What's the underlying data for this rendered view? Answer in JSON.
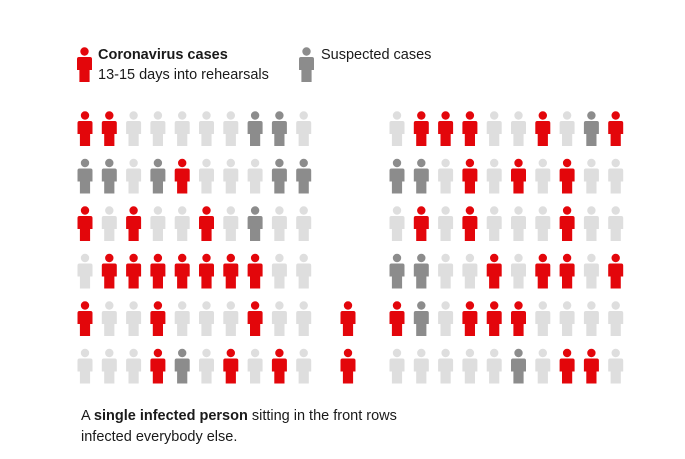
{
  "legend": {
    "confirmed": {
      "title": "Coronavirus cases",
      "subtitle": "13-15 days into rehearsals",
      "color": "#e3060b",
      "icon": "person-icon"
    },
    "suspected": {
      "title": "Suspected cases",
      "color": "#8c8c8c",
      "icon": "person-icon"
    },
    "healthy_color": "#dedede"
  },
  "caption": {
    "prefix": "A ",
    "bold": "single infected person",
    "suffix": " sitting in the front rows infected everybody else."
  },
  "chart_data": {
    "type": "unit-grid",
    "status_codes": {
      "0": "not infected",
      "1": "coronavirus case",
      "2": "suspected case"
    },
    "left_block": [
      [
        1,
        1,
        0,
        0,
        0,
        0,
        0,
        2,
        2,
        0
      ],
      [
        2,
        2,
        0,
        2,
        1,
        0,
        0,
        0,
        2,
        2
      ],
      [
        1,
        0,
        1,
        0,
        0,
        1,
        0,
        2,
        0,
        0
      ],
      [
        0,
        1,
        1,
        1,
        1,
        1,
        1,
        1,
        0,
        0
      ],
      [
        1,
        0,
        0,
        1,
        0,
        0,
        0,
        1,
        0,
        0
      ],
      [
        0,
        0,
        0,
        1,
        2,
        0,
        1,
        0,
        1,
        0
      ]
    ],
    "front_column": [
      0,
      0,
      0,
      0,
      1,
      1
    ],
    "right_block": [
      [
        0,
        1,
        1,
        1,
        0,
        0,
        1,
        0,
        2,
        1
      ],
      [
        2,
        2,
        0,
        1,
        0,
        1,
        0,
        1,
        0,
        0
      ],
      [
        0,
        1,
        0,
        1,
        0,
        0,
        0,
        1,
        0,
        0
      ],
      [
        2,
        2,
        0,
        0,
        1,
        0,
        1,
        1,
        0,
        1
      ],
      [
        1,
        2,
        0,
        1,
        1,
        1,
        0,
        0,
        0,
        0
      ],
      [
        0,
        0,
        0,
        0,
        0,
        2,
        0,
        1,
        1,
        0
      ]
    ]
  }
}
